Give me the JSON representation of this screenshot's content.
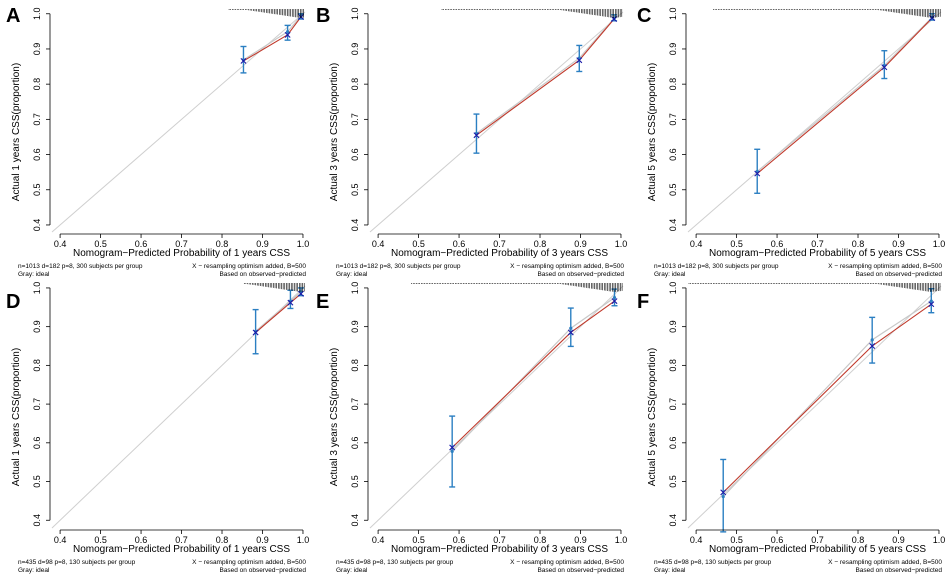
{
  "chart_data": [
    {
      "label": "A",
      "type": "line",
      "title": "",
      "xlabel": "Nomogram−Predicted Probability of 1 years CSS",
      "ylabel": "Actual 1 years CSS(proportion)",
      "xlim": [
        0.38,
        1.005
      ],
      "ylim": [
        0.38,
        1.005
      ],
      "xticks": [
        "0.4",
        "0.5",
        "0.6",
        "0.7",
        "0.8",
        "0.9",
        "1.0"
      ],
      "yticks": [
        "0.4",
        "0.5",
        "0.6",
        "0.7",
        "0.8",
        "0.9",
        "1.0"
      ],
      "series": [
        {
          "name": "calibration",
          "points": [
            {
              "x": 0.853,
              "y": 0.869,
              "lo": 0.832,
              "hi": 0.907,
              "xcorr": 0.866
            },
            {
              "x": 0.962,
              "y": 0.949,
              "lo": 0.925,
              "hi": 0.967,
              "xcorr": 0.94
            },
            {
              "x": 0.995,
              "y": 0.994,
              "lo": 0.985,
              "hi": 1.0,
              "xcorr": 0.991
            }
          ]
        }
      ],
      "footnote_left": [
        "n=1013 d=182 p=8, 300 subjects per group",
        "Gray: ideal"
      ],
      "footnote_right": [
        "X − resampling optimism added, B=500",
        "Based on observed−predicted"
      ]
    },
    {
      "label": "B",
      "type": "line",
      "title": "",
      "xlabel": "Nomogram−Predicted Probability of 3 years CSS",
      "ylabel": "Actual 3 years CSS(proportion)",
      "xlim": [
        0.38,
        1.005
      ],
      "ylim": [
        0.38,
        1.005
      ],
      "xticks": [
        "0.4",
        "0.5",
        "0.6",
        "0.7",
        "0.8",
        "0.9",
        "1.0"
      ],
      "yticks": [
        "0.4",
        "0.5",
        "0.6",
        "0.7",
        "0.8",
        "0.9",
        "1.0"
      ],
      "series": [
        {
          "name": "calibration",
          "points": [
            {
              "x": 0.643,
              "y": 0.66,
              "lo": 0.604,
              "hi": 0.715,
              "xcorr": 0.655
            },
            {
              "x": 0.897,
              "y": 0.874,
              "lo": 0.836,
              "hi": 0.91,
              "xcorr": 0.868
            },
            {
              "x": 0.983,
              "y": 0.987,
              "lo": 0.98,
              "hi": 0.997,
              "xcorr": 0.985
            }
          ]
        }
      ],
      "footnote_left": [
        "n=1013 d=182 p=8, 300 subjects per group",
        "Gray: ideal"
      ],
      "footnote_right": [
        "X − resampling optimism added, B=500",
        "Based on observed−predicted"
      ]
    },
    {
      "label": "C",
      "type": "line",
      "title": "",
      "xlabel": "Nomogram−Predicted Probability of 5 years CSS",
      "ylabel": "Actual 5 years CSS(proportion)",
      "xlim": [
        0.38,
        1.005
      ],
      "ylim": [
        0.38,
        1.005
      ],
      "xticks": [
        "0.4",
        "0.5",
        "0.6",
        "0.7",
        "0.8",
        "0.9",
        "1.0"
      ],
      "yticks": [
        "0.4",
        "0.5",
        "0.6",
        "0.7",
        "0.8",
        "0.9",
        "1.0"
      ],
      "series": [
        {
          "name": "calibration",
          "points": [
            {
              "x": 0.551,
              "y": 0.552,
              "lo": 0.49,
              "hi": 0.615,
              "xcorr": 0.546
            },
            {
              "x": 0.865,
              "y": 0.853,
              "lo": 0.816,
              "hi": 0.895,
              "xcorr": 0.848
            },
            {
              "x": 0.983,
              "y": 0.99,
              "lo": 0.982,
              "hi": 1.0,
              "xcorr": 0.988
            }
          ]
        }
      ],
      "footnote_left": [
        "n=1013 d=182 p=8, 300 subjects per group",
        "Gray: ideal"
      ],
      "footnote_right": [
        "X − resampling optimism added, B=500",
        "Based on observed−predicted"
      ]
    },
    {
      "label": "D",
      "type": "line",
      "title": "",
      "xlabel": "Nomogram−Predicted Probability of 1 years CSS",
      "ylabel": "Actual 1 years CSS(proportion)",
      "xlim": [
        0.38,
        1.005
      ],
      "ylim": [
        0.38,
        1.005
      ],
      "xticks": [
        "0.4",
        "0.5",
        "0.6",
        "0.7",
        "0.8",
        "0.9",
        "1.0"
      ],
      "yticks": [
        "0.4",
        "0.5",
        "0.6",
        "0.7",
        "0.8",
        "0.9",
        "1.0"
      ],
      "series": [
        {
          "name": "calibration",
          "points": [
            {
              "x": 0.883,
              "y": 0.888,
              "lo": 0.83,
              "hi": 0.944,
              "xcorr": 0.885
            },
            {
              "x": 0.969,
              "y": 0.966,
              "lo": 0.947,
              "hi": 0.994,
              "xcorr": 0.962
            },
            {
              "x": 0.995,
              "y": 0.99,
              "lo": 0.98,
              "hi": 1.0,
              "xcorr": 0.985
            }
          ]
        }
      ],
      "footnote_left": [
        "n=435 d=98 p=8, 130 subjects per group",
        "Gray: ideal"
      ],
      "footnote_right": [
        "X − resampling optimism added, B=500",
        "Based on observed−predicted"
      ]
    },
    {
      "label": "E",
      "type": "line",
      "title": "",
      "xlabel": "Nomogram−Predicted Probability of 3 years CSS",
      "ylabel": "Actual 3 years CSS(proportion)",
      "xlim": [
        0.38,
        1.005
      ],
      "ylim": [
        0.38,
        1.005
      ],
      "xticks": [
        "0.4",
        "0.5",
        "0.6",
        "0.7",
        "0.8",
        "0.9",
        "1.0"
      ],
      "yticks": [
        "0.4",
        "0.5",
        "0.6",
        "0.7",
        "0.8",
        "0.9",
        "1.0"
      ],
      "series": [
        {
          "name": "calibration",
          "points": [
            {
              "x": 0.583,
              "y": 0.578,
              "lo": 0.486,
              "hi": 0.669,
              "xcorr": 0.588
            },
            {
              "x": 0.876,
              "y": 0.896,
              "lo": 0.849,
              "hi": 0.948,
              "xcorr": 0.885
            },
            {
              "x": 0.984,
              "y": 0.975,
              "lo": 0.954,
              "hi": 0.997,
              "xcorr": 0.966
            }
          ]
        }
      ],
      "footnote_left": [
        "n=435 d=98 p=8, 130 subjects per group",
        "Gray: ideal"
      ],
      "footnote_right": [
        "X − resampling optimism added, B=500",
        "Based on observed−predicted"
      ]
    },
    {
      "label": "F",
      "type": "line",
      "title": "",
      "xlabel": "Nomogram−Predicted Probability of 5 years CSS",
      "ylabel": "Actual 5 years CSS(proportion)",
      "xlim": [
        0.38,
        1.005
      ],
      "ylim": [
        0.38,
        1.005
      ],
      "xticks": [
        "0.4",
        "0.5",
        "0.6",
        "0.7",
        "0.8",
        "0.9",
        "1.0"
      ],
      "yticks": [
        "0.4",
        "0.5",
        "0.6",
        "0.7",
        "0.8",
        "0.9",
        "1.0"
      ],
      "series": [
        {
          "name": "calibration",
          "points": [
            {
              "x": 0.467,
              "y": 0.461,
              "lo": 0.37,
              "hi": 0.557,
              "xcorr": 0.472
            },
            {
              "x": 0.835,
              "y": 0.866,
              "lo": 0.806,
              "hi": 0.924,
              "xcorr": 0.85
            },
            {
              "x": 0.981,
              "y": 0.966,
              "lo": 0.936,
              "hi": 0.998,
              "xcorr": 0.958
            }
          ]
        }
      ],
      "footnote_left": [
        "n=435 d=98 p=8, 130 subjects per group",
        "Gray: ideal"
      ],
      "footnote_right": [
        "X − resampling optimism added, B=500",
        "Based on observed−predicted"
      ]
    }
  ]
}
